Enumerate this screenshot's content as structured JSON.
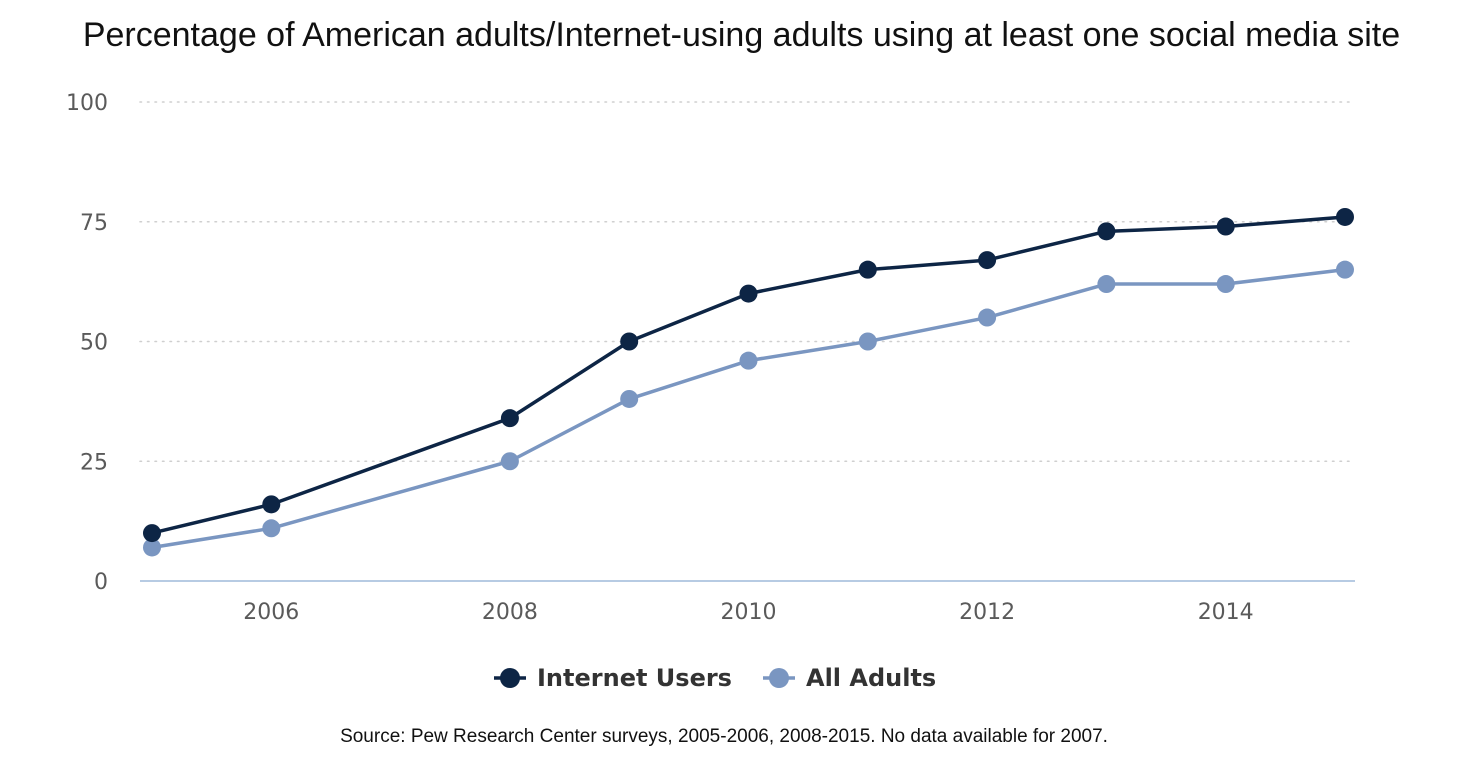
{
  "chart_data": {
    "type": "line",
    "title": "Percentage of American adults/Internet-using adults using at least one social media site",
    "source": "Source: Pew Research Center surveys, 2005-2006, 2008-2015. No data available for 2007.",
    "xlabel": "",
    "ylabel": "",
    "xlim": [
      2005,
      2015
    ],
    "ylim": [
      0,
      100
    ],
    "x_ticks": [
      "2006",
      "2008",
      "2010",
      "2012",
      "2014"
    ],
    "y_ticks": [
      "0",
      "25",
      "50",
      "75",
      "100"
    ],
    "grid": "horizontal dotted",
    "legend_position": "bottom-center",
    "x": [
      2005,
      2006,
      2008,
      2009,
      2010,
      2011,
      2012,
      2013,
      2014,
      2015
    ],
    "series": [
      {
        "name": "Internet Users",
        "color": "#0d2545",
        "values": [
          10,
          16,
          34,
          50,
          60,
          65,
          67,
          73,
          74,
          76
        ]
      },
      {
        "name": "All Adults",
        "color": "#7a96c1",
        "values": [
          7,
          11,
          25,
          38,
          46,
          50,
          55,
          62,
          62,
          65
        ]
      }
    ],
    "axis_line_color": "#b7cbe3",
    "gridline_color": "#cfcfcf"
  }
}
